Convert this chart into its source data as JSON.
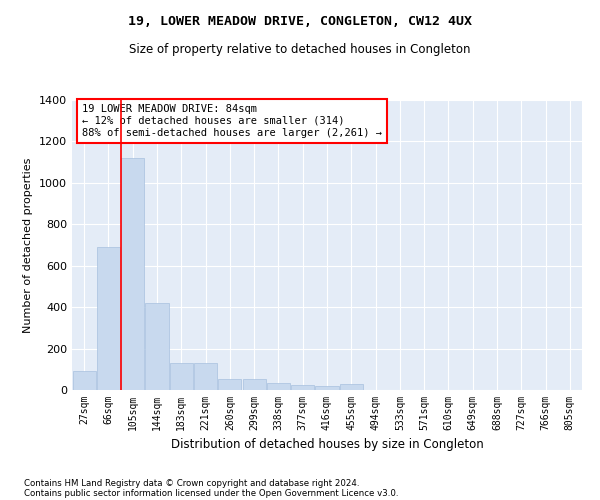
{
  "title": "19, LOWER MEADOW DRIVE, CONGLETON, CW12 4UX",
  "subtitle": "Size of property relative to detached houses in Congleton",
  "xlabel": "Distribution of detached houses by size in Congleton",
  "ylabel": "Number of detached properties",
  "bar_color": "#c8d9ee",
  "bar_edge_color": "#a8c0de",
  "background_color": "#e4ecf7",
  "grid_color": "#ffffff",
  "categories": [
    "27sqm",
    "66sqm",
    "105sqm",
    "144sqm",
    "183sqm",
    "221sqm",
    "260sqm",
    "299sqm",
    "338sqm",
    "377sqm",
    "416sqm",
    "455sqm",
    "494sqm",
    "533sqm",
    "571sqm",
    "610sqm",
    "649sqm",
    "688sqm",
    "727sqm",
    "766sqm",
    "805sqm"
  ],
  "values": [
    90,
    690,
    1120,
    420,
    130,
    130,
    55,
    55,
    35,
    25,
    20,
    30,
    0,
    0,
    0,
    0,
    0,
    0,
    0,
    0,
    0
  ],
  "ylim": [
    0,
    1400
  ],
  "yticks": [
    0,
    200,
    400,
    600,
    800,
    1000,
    1200,
    1400
  ],
  "red_line_x": 1.5,
  "annotation_title": "19 LOWER MEADOW DRIVE: 84sqm",
  "annotation_line1": "← 12% of detached houses are smaller (314)",
  "annotation_line2": "88% of semi-detached houses are larger (2,261) →",
  "footer_line1": "Contains HM Land Registry data © Crown copyright and database right 2024.",
  "footer_line2": "Contains public sector information licensed under the Open Government Licence v3.0."
}
